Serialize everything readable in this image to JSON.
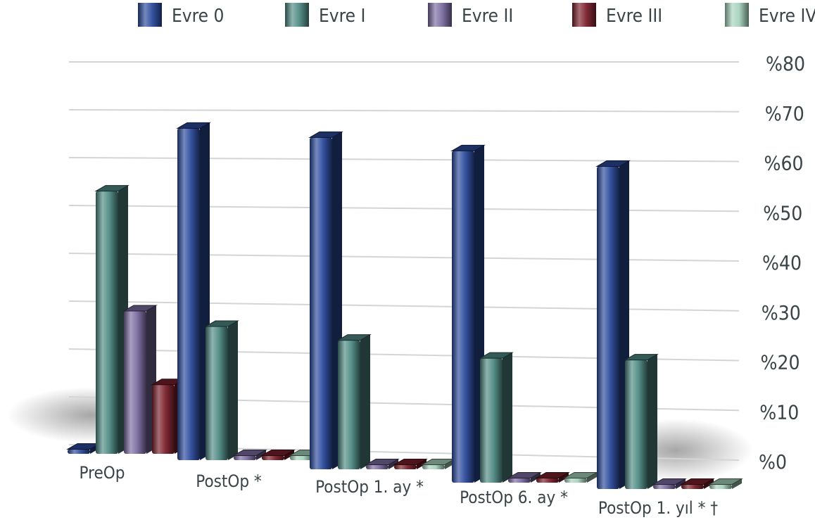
{
  "chart_data": {
    "type": "bar",
    "style": "3d-perspective",
    "legend_position": "top",
    "grid": true,
    "categories": [
      "PreOp",
      "PostOp *",
      "PostOp 1. ay *",
      "PostOp 6. ay *",
      "PostOp 1. yıl * †"
    ],
    "series": [
      {
        "name": "Evre 0",
        "color": "#2b4a9c",
        "values": [
          1,
          72,
          72,
          72,
          70
        ]
      },
      {
        "name": "Evre I",
        "color": "#4f8a84",
        "values": [
          57,
          29,
          28,
          27,
          28
        ]
      },
      {
        "name": "Evre II",
        "color": "#7a6ba0",
        "values": [
          31,
          1,
          1,
          1,
          1
        ]
      },
      {
        "name": "Evre III",
        "color": "#7a1f2a",
        "values": [
          15,
          1,
          1,
          1,
          1
        ]
      },
      {
        "name": "Evre IV",
        "color": "#a5d2bd",
        "values": [
          3,
          1,
          1,
          1,
          1
        ]
      }
    ],
    "ylim": [
      0,
      80
    ],
    "yticks": [
      "%0",
      "%10",
      "%20",
      "%30",
      "%40",
      "%50",
      "%60",
      "%70",
      "%80"
    ],
    "xlabel": "",
    "ylabel": ""
  }
}
